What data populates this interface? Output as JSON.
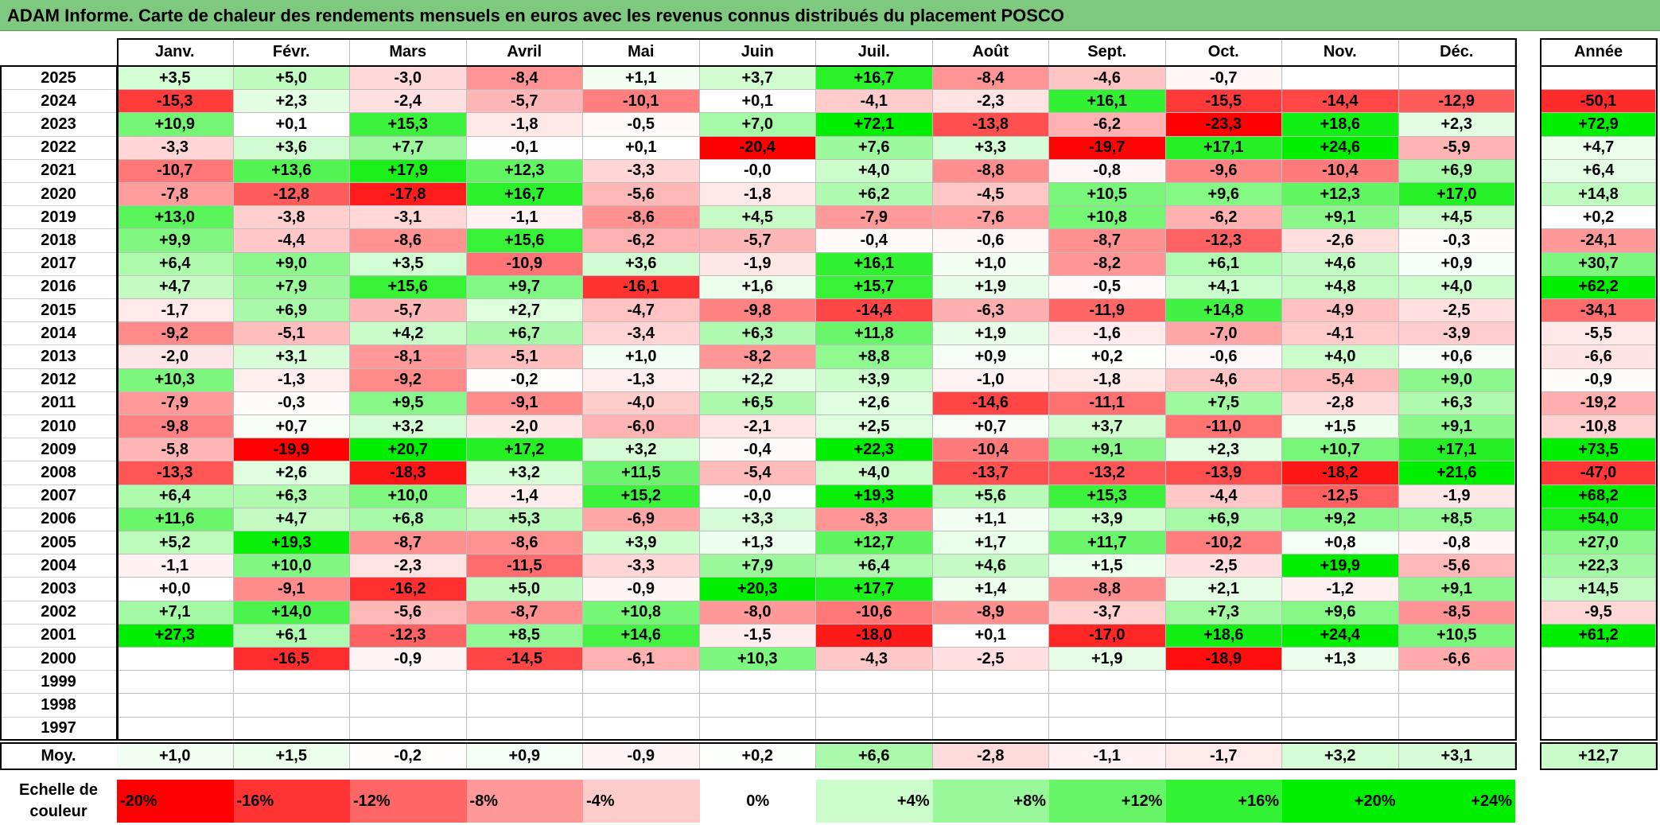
{
  "title": "ADAM Informe. Carte de chaleur des rendements mensuels en euros avec les revenus connus distribués du placement POSCO",
  "chart_data": {
    "type": "heatmap",
    "title": "ADAM Informe. Carte de chaleur des rendements mensuels en euros avec les revenus connus distribués du placement POSCO",
    "months": [
      "Janv.",
      "Févr.",
      "Mars",
      "Avril",
      "Mai",
      "Juin",
      "Juil.",
      "Août",
      "Sept.",
      "Oct.",
      "Nov.",
      "Déc."
    ],
    "year_header": "Année",
    "rows": [
      {
        "year": "2025",
        "values": [
          "+3,5",
          "+5,0",
          "-3,0",
          "-8,4",
          "+1,1",
          "+3,7",
          "+16,7",
          "-8,4",
          "-4,6",
          "-0,7",
          "",
          ""
        ],
        "annual": ""
      },
      {
        "year": "2024",
        "values": [
          "-15,3",
          "+2,3",
          "-2,4",
          "-5,7",
          "-10,1",
          "+0,1",
          "-4,1",
          "-2,3",
          "+16,1",
          "-15,5",
          "-14,4",
          "-12,9"
        ],
        "annual": "-50,1"
      },
      {
        "year": "2023",
        "values": [
          "+10,9",
          "+0,1",
          "+15,3",
          "-1,8",
          "-0,5",
          "+7,0",
          "+72,1",
          "-13,8",
          "-6,2",
          "-23,3",
          "+18,6",
          "+2,3"
        ],
        "annual": "+72,9"
      },
      {
        "year": "2022",
        "values": [
          "-3,3",
          "+3,6",
          "+7,7",
          "-0,1",
          "+0,1",
          "-20,4",
          "+7,6",
          "+3,3",
          "-19,7",
          "+17,1",
          "+24,6",
          "-5,9"
        ],
        "annual": "+4,7"
      },
      {
        "year": "2021",
        "values": [
          "-10,7",
          "+13,6",
          "+17,9",
          "+12,3",
          "-3,3",
          "-0,0",
          "+4,0",
          "-8,8",
          "-0,8",
          "-9,6",
          "-10,4",
          "+6,9"
        ],
        "annual": "+6,4"
      },
      {
        "year": "2020",
        "values": [
          "-7,8",
          "-12,8",
          "-17,8",
          "+16,7",
          "-5,6",
          "-1,8",
          "+6,2",
          "-4,5",
          "+10,5",
          "+9,6",
          "+12,3",
          "+17,0"
        ],
        "annual": "+14,8"
      },
      {
        "year": "2019",
        "values": [
          "+13,0",
          "-3,8",
          "-3,1",
          "-1,1",
          "-8,6",
          "+4,5",
          "-7,9",
          "-7,6",
          "+10,8",
          "-6,2",
          "+9,1",
          "+4,5"
        ],
        "annual": "+0,2"
      },
      {
        "year": "2018",
        "values": [
          "+9,9",
          "-4,4",
          "-8,6",
          "+15,6",
          "-6,2",
          "-5,7",
          "-0,4",
          "-0,6",
          "-8,7",
          "-12,3",
          "-2,6",
          "-0,3"
        ],
        "annual": "-24,1"
      },
      {
        "year": "2017",
        "values": [
          "+6,4",
          "+9,0",
          "+3,5",
          "-10,9",
          "+3,6",
          "-1,9",
          "+16,1",
          "+1,0",
          "-8,2",
          "+6,1",
          "+4,6",
          "+0,9"
        ],
        "annual": "+30,7"
      },
      {
        "year": "2016",
        "values": [
          "+4,7",
          "+7,9",
          "+15,6",
          "+9,7",
          "-16,1",
          "+1,6",
          "+15,7",
          "+1,9",
          "-0,5",
          "+4,1",
          "+4,8",
          "+4,0"
        ],
        "annual": "+62,2"
      },
      {
        "year": "2015",
        "values": [
          "-1,7",
          "+6,9",
          "-5,7",
          "+2,7",
          "-4,7",
          "-9,8",
          "-14,4",
          "-6,3",
          "-11,9",
          "+14,8",
          "-4,9",
          "-2,5"
        ],
        "annual": "-34,1"
      },
      {
        "year": "2014",
        "values": [
          "-9,2",
          "-5,1",
          "+4,2",
          "+6,7",
          "-3,4",
          "+6,3",
          "+11,8",
          "+1,9",
          "-1,6",
          "-7,0",
          "-4,1",
          "-3,9"
        ],
        "annual": "-5,5"
      },
      {
        "year": "2013",
        "values": [
          "-2,0",
          "+3,1",
          "-8,1",
          "-5,1",
          "+1,0",
          "-8,2",
          "+8,8",
          "+0,9",
          "+0,2",
          "-0,6",
          "+4,0",
          "+0,6"
        ],
        "annual": "-6,6"
      },
      {
        "year": "2012",
        "values": [
          "+10,3",
          "-1,3",
          "-9,2",
          "-0,2",
          "-1,3",
          "+2,2",
          "+3,9",
          "-1,0",
          "-1,8",
          "-4,6",
          "-5,4",
          "+9,0"
        ],
        "annual": "-0,9"
      },
      {
        "year": "2011",
        "values": [
          "-7,9",
          "-0,3",
          "+9,5",
          "-9,1",
          "-4,0",
          "+6,5",
          "+2,6",
          "-14,6",
          "-11,1",
          "+7,5",
          "-2,8",
          "+6,3"
        ],
        "annual": "-19,2"
      },
      {
        "year": "2010",
        "values": [
          "-9,8",
          "+0,7",
          "+3,2",
          "-2,0",
          "-6,0",
          "-2,1",
          "+2,5",
          "+0,7",
          "+3,7",
          "-11,0",
          "+1,5",
          "+9,1"
        ],
        "annual": "-10,8"
      },
      {
        "year": "2009",
        "values": [
          "-5,8",
          "-19,9",
          "+20,7",
          "+17,2",
          "+3,2",
          "-0,4",
          "+22,3",
          "-10,4",
          "+9,1",
          "+2,3",
          "+10,7",
          "+17,1"
        ],
        "annual": "+73,5"
      },
      {
        "year": "2008",
        "values": [
          "-13,3",
          "+2,6",
          "-18,3",
          "+3,2",
          "+11,5",
          "-5,4",
          "+4,0",
          "-13,7",
          "-13,2",
          "-13,9",
          "-18,2",
          "+21,6"
        ],
        "annual": "-47,0"
      },
      {
        "year": "2007",
        "values": [
          "+6,4",
          "+6,3",
          "+10,0",
          "-1,4",
          "+15,2",
          "-0,0",
          "+19,3",
          "+5,6",
          "+15,3",
          "-4,4",
          "-12,5",
          "-1,9"
        ],
        "annual": "+68,2"
      },
      {
        "year": "2006",
        "values": [
          "+11,6",
          "+4,7",
          "+6,8",
          "+5,3",
          "-6,9",
          "+3,3",
          "-8,3",
          "+1,1",
          "+3,9",
          "+6,9",
          "+9,2",
          "+8,5"
        ],
        "annual": "+54,0"
      },
      {
        "year": "2005",
        "values": [
          "+5,2",
          "+19,3",
          "-8,7",
          "-8,6",
          "+3,9",
          "+1,3",
          "+12,7",
          "+1,7",
          "+11,7",
          "-10,2",
          "+0,8",
          "-0,8"
        ],
        "annual": "+27,0"
      },
      {
        "year": "2004",
        "values": [
          "-1,1",
          "+10,0",
          "-2,3",
          "-11,5",
          "-3,3",
          "+7,9",
          "+6,4",
          "+4,6",
          "+1,5",
          "-2,5",
          "+19,9",
          "-5,6"
        ],
        "annual": "+22,3"
      },
      {
        "year": "2003",
        "values": [
          "+0,0",
          "-9,1",
          "-16,2",
          "+5,0",
          "-0,9",
          "+20,3",
          "+17,7",
          "+1,4",
          "-8,8",
          "+2,1",
          "-1,2",
          "+9,1"
        ],
        "annual": "+14,5"
      },
      {
        "year": "2002",
        "values": [
          "+7,1",
          "+14,0",
          "-5,6",
          "-8,7",
          "+10,8",
          "-8,0",
          "-10,6",
          "-8,9",
          "-3,7",
          "+7,3",
          "+9,6",
          "-8,5"
        ],
        "annual": "-9,5"
      },
      {
        "year": "2001",
        "values": [
          "+27,3",
          "+6,1",
          "-12,3",
          "+8,5",
          "+14,6",
          "-1,5",
          "-18,0",
          "+0,1",
          "-17,0",
          "+18,6",
          "+24,4",
          "+10,5"
        ],
        "annual": "+61,2"
      },
      {
        "year": "2000",
        "values": [
          "",
          "-16,5",
          "-0,9",
          "-14,5",
          "-6,1",
          "+10,3",
          "-4,3",
          "-2,5",
          "+1,9",
          "-18,9",
          "+1,3",
          "-6,6"
        ],
        "annual": ""
      },
      {
        "year": "1999",
        "values": [
          "",
          "",
          "",
          "",
          "",
          "",
          "",
          "",
          "",
          "",
          "",
          ""
        ],
        "annual": ""
      },
      {
        "year": "1998",
        "values": [
          "",
          "",
          "",
          "",
          "",
          "",
          "",
          "",
          "",
          "",
          "",
          ""
        ],
        "annual": ""
      },
      {
        "year": "1997",
        "values": [
          "",
          "",
          "",
          "",
          "",
          "",
          "",
          "",
          "",
          "",
          "",
          ""
        ],
        "annual": ""
      }
    ],
    "average": {
      "label": "Moy.",
      "values": [
        "+1,0",
        "+1,5",
        "-0,2",
        "+0,9",
        "-0,9",
        "+0,2",
        "+6,6",
        "-2,8",
        "-1,1",
        "-1,7",
        "+3,2",
        "+3,1"
      ],
      "annual": "+12,7"
    },
    "scale": {
      "label": "Echelle de couleur",
      "stops": [
        {
          "label": "-20%",
          "value": -20
        },
        {
          "label": "-16%",
          "value": -16
        },
        {
          "label": "-12%",
          "value": -12
        },
        {
          "label": "-8%",
          "value": -8
        },
        {
          "label": "-4%",
          "value": -4
        },
        {
          "label": "0%",
          "value": 0
        },
        {
          "label": "+4%",
          "value": 4
        },
        {
          "label": "+8%",
          "value": 8
        },
        {
          "label": "+12%",
          "value": 12
        },
        {
          "label": "+16%",
          "value": 16
        },
        {
          "label": "+20%",
          "value": 20
        },
        {
          "label": "+24%",
          "value": 24
        }
      ]
    },
    "colors": {
      "negative_max": "#ff0000",
      "zero": "#ffffff",
      "positive_max": "#00ee00",
      "title_bg": "#7fc87f"
    }
  }
}
